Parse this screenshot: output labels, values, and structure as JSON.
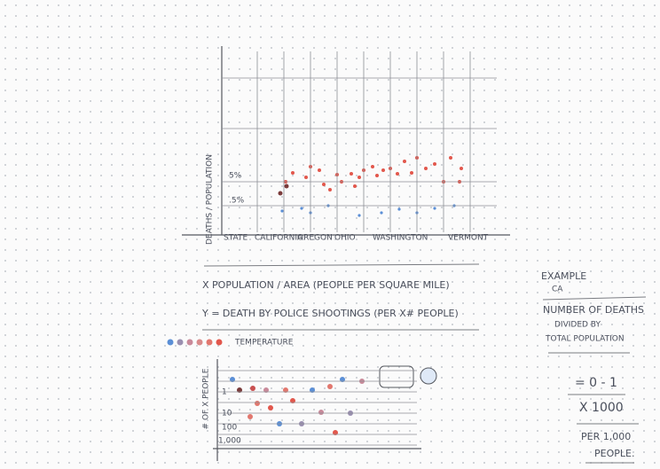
{
  "top_chart": {
    "y_axis_label": "DEATHS / POPULATION",
    "y_ticks": [
      "5%",
      ".5%"
    ],
    "x_labels": [
      "STATE",
      "CALIFORNIA",
      "OREGON",
      "OHIO",
      "WASHINGTON",
      "VERMONT"
    ]
  },
  "notes": [
    "X POPULATION / AREA (PEOPLE PER SQUARE MILE)",
    "Y = DEATH BY POLICE SHOOTINGS (PER X# PEOPLE)"
  ],
  "legend_label": "TEMPERATURE",
  "bottom_chart": {
    "y_axis_label": "# OF X PEOPLE",
    "y_ticks": [
      "1",
      "10",
      "100",
      "1,000"
    ]
  },
  "example": {
    "title": "EXAMPLE",
    "subtitle": "CA",
    "lines": [
      "NUMBER OF DEATHS",
      "DIVIDED BY",
      "TOTAL POPULATION",
      "= 0 - 1",
      "X 1000",
      "PER 1,000",
      "PEOPLE."
    ]
  }
}
